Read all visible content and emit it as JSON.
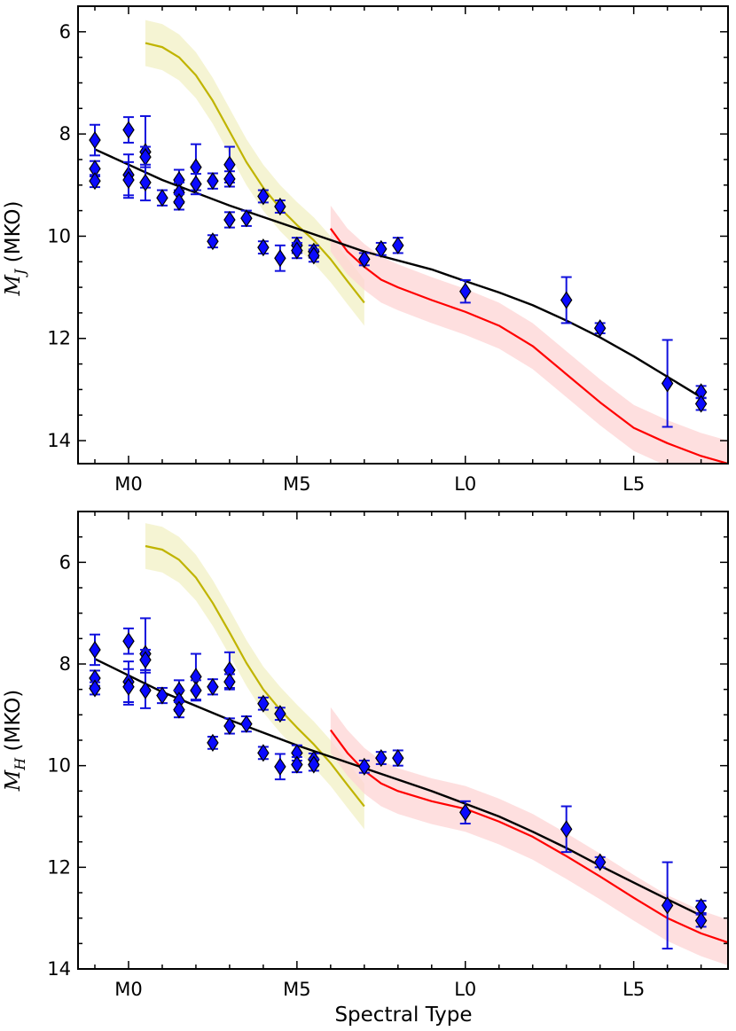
{
  "chart_data": [
    {
      "type": "scatter",
      "ylabel_symbol": "M",
      "ylabel_sub": "J",
      "ylabel_suffix": " (MKO)",
      "xlabel": "",
      "xlim": [
        -1.5,
        17.8
      ],
      "ylim": [
        14.45,
        5.5
      ],
      "x_ticks": [
        {
          "v": 0,
          "label": "M0"
        },
        {
          "v": 5,
          "label": "M5"
        },
        {
          "v": 10,
          "label": "L0"
        },
        {
          "v": 15,
          "label": "L5"
        }
      ],
      "y_ticks": [
        {
          "v": 6,
          "label": "6"
        },
        {
          "v": 8,
          "label": "8"
        },
        {
          "v": 10,
          "label": "10"
        },
        {
          "v": 12,
          "label": "12"
        },
        {
          "v": 14,
          "label": "14"
        }
      ],
      "points": [
        {
          "x": -1,
          "y": 8.12,
          "e": 0.3
        },
        {
          "x": -1,
          "y": 8.68,
          "e": 0.15
        },
        {
          "x": -1,
          "y": 8.92,
          "e": 0.12
        },
        {
          "x": 0,
          "y": 7.92,
          "e": 0.25
        },
        {
          "x": 0,
          "y": 8.8,
          "e": 0.4
        },
        {
          "x": 0,
          "y": 8.9,
          "e": 0.35
        },
        {
          "x": 0.5,
          "y": 8.35,
          "e": 0.7
        },
        {
          "x": 0.5,
          "y": 8.45,
          "e": 0.2
        },
        {
          "x": 0.5,
          "y": 8.95,
          "e": 0.35
        },
        {
          "x": 1,
          "y": 9.25,
          "e": 0.15
        },
        {
          "x": 1.5,
          "y": 8.9,
          "e": 0.2
        },
        {
          "x": 1.5,
          "y": 9.15,
          "e": 0.2
        },
        {
          "x": 1.5,
          "y": 9.33,
          "e": 0.15
        },
        {
          "x": 2,
          "y": 8.65,
          "e": 0.45
        },
        {
          "x": 2,
          "y": 8.98,
          "e": 0.2
        },
        {
          "x": 2.5,
          "y": 8.92,
          "e": 0.15
        },
        {
          "x": 2.5,
          "y": 10.1,
          "e": 0.12
        },
        {
          "x": 3,
          "y": 8.6,
          "e": 0.35
        },
        {
          "x": 3,
          "y": 8.88,
          "e": 0.15
        },
        {
          "x": 3,
          "y": 9.68,
          "e": 0.15
        },
        {
          "x": 3.5,
          "y": 9.65,
          "e": 0.15
        },
        {
          "x": 4,
          "y": 9.22,
          "e": 0.12
        },
        {
          "x": 4,
          "y": 10.22,
          "e": 0.12
        },
        {
          "x": 4.5,
          "y": 9.42,
          "e": 0.12
        },
        {
          "x": 4.5,
          "y": 10.43,
          "e": 0.25
        },
        {
          "x": 5,
          "y": 10.18,
          "e": 0.15
        },
        {
          "x": 5,
          "y": 10.28,
          "e": 0.15
        },
        {
          "x": 5.5,
          "y": 10.3,
          "e": 0.12
        },
        {
          "x": 5.5,
          "y": 10.38,
          "e": 0.12
        },
        {
          "x": 7,
          "y": 10.45,
          "e": 0.12
        },
        {
          "x": 7.5,
          "y": 10.25,
          "e": 0.12
        },
        {
          "x": 8,
          "y": 10.18,
          "e": 0.15
        },
        {
          "x": 10,
          "y": 11.08,
          "e": 0.22
        },
        {
          "x": 13,
          "y": 11.25,
          "e": 0.45
        },
        {
          "x": 14,
          "y": 11.8,
          "e": 0.1
        },
        {
          "x": 16,
          "y": 12.88,
          "e": 0.85
        },
        {
          "x": 17,
          "y": 13.05,
          "e": 0.12
        },
        {
          "x": 17,
          "y": 13.28,
          "e": 0.12
        }
      ],
      "fit_line": {
        "color": "#000000",
        "x": [
          -1,
          1,
          3,
          5,
          7,
          9,
          10,
          11,
          12,
          13,
          14,
          15,
          16,
          17
        ],
        "y": [
          8.3,
          8.9,
          9.4,
          9.85,
          10.3,
          10.65,
          10.88,
          11.1,
          11.35,
          11.65,
          11.98,
          12.35,
          12.75,
          13.15
        ]
      },
      "yellow_curve": {
        "color": "#c0b400",
        "band_color": "#f2f0c4",
        "x": [
          0.5,
          1.0,
          1.5,
          2,
          2.5,
          3,
          3.5,
          4,
          4.5,
          5,
          5.5,
          6,
          6.5,
          7
        ],
        "y": [
          6.22,
          6.3,
          6.5,
          6.85,
          7.35,
          7.95,
          8.55,
          9.05,
          9.45,
          9.78,
          10.08,
          10.45,
          10.88,
          11.3
        ],
        "band": 0.45
      },
      "red_curve": {
        "color": "#ff0000",
        "band_color": "#fdd4d4",
        "x": [
          6,
          6.5,
          7,
          7.5,
          8,
          9,
          10,
          11,
          12,
          13,
          14,
          15,
          16,
          17,
          17.8
        ],
        "y": [
          9.85,
          10.3,
          10.6,
          10.85,
          11.0,
          11.25,
          11.48,
          11.75,
          12.15,
          12.7,
          13.25,
          13.75,
          14.05,
          14.3,
          14.45
        ],
        "band": 0.45
      }
    },
    {
      "type": "scatter",
      "ylabel_symbol": "M",
      "ylabel_sub": "H",
      "ylabel_suffix": " (MKO)",
      "xlabel": "Spectral Type",
      "xlim": [
        -1.5,
        17.8
      ],
      "ylim": [
        14.0,
        5.0
      ],
      "x_ticks": [
        {
          "v": 0,
          "label": "M0"
        },
        {
          "v": 5,
          "label": "M5"
        },
        {
          "v": 10,
          "label": "L0"
        },
        {
          "v": 15,
          "label": "L5"
        }
      ],
      "y_ticks": [
        {
          "v": 6,
          "label": "6"
        },
        {
          "v": 8,
          "label": "8"
        },
        {
          "v": 10,
          "label": "10"
        },
        {
          "v": 12,
          "label": "12"
        },
        {
          "v": 14,
          "label": "14"
        }
      ],
      "points": [
        {
          "x": -1,
          "y": 7.72,
          "e": 0.3
        },
        {
          "x": -1,
          "y": 8.28,
          "e": 0.15
        },
        {
          "x": -1,
          "y": 8.48,
          "e": 0.12
        },
        {
          "x": 0,
          "y": 7.55,
          "e": 0.25
        },
        {
          "x": 0,
          "y": 8.35,
          "e": 0.4
        },
        {
          "x": 0,
          "y": 8.45,
          "e": 0.35
        },
        {
          "x": 0.5,
          "y": 7.8,
          "e": 0.7
        },
        {
          "x": 0.5,
          "y": 7.92,
          "e": 0.2
        },
        {
          "x": 0.5,
          "y": 8.52,
          "e": 0.35
        },
        {
          "x": 1,
          "y": 8.62,
          "e": 0.15
        },
        {
          "x": 1.5,
          "y": 8.52,
          "e": 0.2
        },
        {
          "x": 1.5,
          "y": 8.72,
          "e": 0.2
        },
        {
          "x": 1.5,
          "y": 8.9,
          "e": 0.15
        },
        {
          "x": 2,
          "y": 8.25,
          "e": 0.45
        },
        {
          "x": 2,
          "y": 8.52,
          "e": 0.2
        },
        {
          "x": 2.5,
          "y": 8.45,
          "e": 0.15
        },
        {
          "x": 2.5,
          "y": 9.55,
          "e": 0.12
        },
        {
          "x": 3,
          "y": 8.12,
          "e": 0.35
        },
        {
          "x": 3,
          "y": 8.35,
          "e": 0.15
        },
        {
          "x": 3,
          "y": 9.22,
          "e": 0.15
        },
        {
          "x": 3.5,
          "y": 9.18,
          "e": 0.15
        },
        {
          "x": 4,
          "y": 8.78,
          "e": 0.12
        },
        {
          "x": 4,
          "y": 9.75,
          "e": 0.12
        },
        {
          "x": 4.5,
          "y": 8.98,
          "e": 0.12
        },
        {
          "x": 4.5,
          "y": 10.02,
          "e": 0.25
        },
        {
          "x": 5,
          "y": 9.75,
          "e": 0.15
        },
        {
          "x": 5,
          "y": 9.98,
          "e": 0.15
        },
        {
          "x": 5.5,
          "y": 9.88,
          "e": 0.12
        },
        {
          "x": 5.5,
          "y": 9.98,
          "e": 0.12
        },
        {
          "x": 7,
          "y": 10.02,
          "e": 0.12
        },
        {
          "x": 7.5,
          "y": 9.85,
          "e": 0.12
        },
        {
          "x": 8,
          "y": 9.85,
          "e": 0.15
        },
        {
          "x": 10,
          "y": 10.92,
          "e": 0.22
        },
        {
          "x": 13,
          "y": 11.25,
          "e": 0.45
        },
        {
          "x": 14,
          "y": 11.9,
          "e": 0.1
        },
        {
          "x": 16,
          "y": 12.75,
          "e": 0.85
        },
        {
          "x": 17,
          "y": 12.78,
          "e": 0.12
        },
        {
          "x": 17,
          "y": 13.05,
          "e": 0.12
        }
      ],
      "fit_line": {
        "color": "#000000",
        "x": [
          -1,
          1,
          3,
          5,
          7,
          9,
          10,
          11,
          12,
          13,
          14,
          15,
          16,
          17
        ],
        "y": [
          7.9,
          8.55,
          9.1,
          9.6,
          10.05,
          10.5,
          10.75,
          11.0,
          11.3,
          11.62,
          11.97,
          12.3,
          12.63,
          12.95
        ]
      },
      "yellow_curve": {
        "color": "#c0b400",
        "band_color": "#f2f0c4",
        "x": [
          0.5,
          1.0,
          1.5,
          2,
          2.5,
          3,
          3.5,
          4,
          4.5,
          5,
          5.5,
          6,
          6.5,
          7
        ],
        "y": [
          5.68,
          5.75,
          5.95,
          6.3,
          6.8,
          7.38,
          7.98,
          8.5,
          8.9,
          9.25,
          9.58,
          9.95,
          10.38,
          10.8
        ],
        "band": 0.45
      },
      "red_curve": {
        "color": "#ff0000",
        "band_color": "#fdd4d4",
        "x": [
          6,
          6.5,
          7,
          7.5,
          8,
          9,
          10,
          11,
          12,
          13,
          14,
          15,
          16,
          17,
          17.8
        ],
        "y": [
          9.3,
          9.75,
          10.1,
          10.35,
          10.5,
          10.7,
          10.85,
          11.1,
          11.4,
          11.78,
          12.18,
          12.6,
          13.0,
          13.3,
          13.48
        ],
        "band": 0.45
      }
    }
  ]
}
